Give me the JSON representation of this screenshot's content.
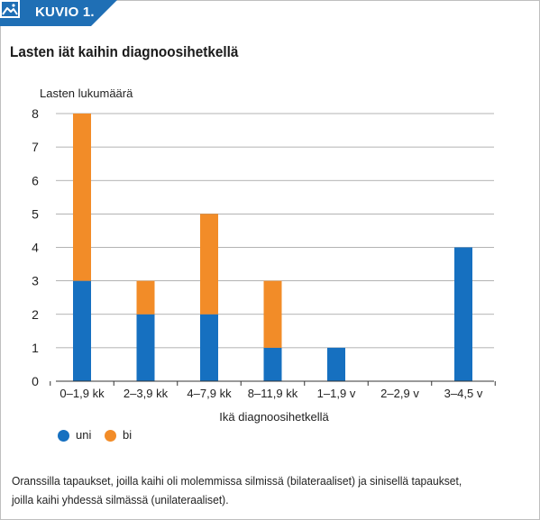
{
  "badge": {
    "label": "KUVIO 1.",
    "icon": "image-icon"
  },
  "figure_title": "Lasten iät kaihin diagnoosihetkellä",
  "caption": "Oranssilla tapaukset, joilla kaihi oli molemmissa silmissä (bilateraaliset) ja sinisellä tapaukset, joilla kaihi yhdessä silmässä (unilateraaliset).",
  "colors": {
    "badge": "#1f6fb5",
    "uni": "#1670c0",
    "bi": "#f28c28",
    "grid": "#9a9a9a"
  },
  "chart_data": {
    "type": "bar",
    "stacked": true,
    "ylabel": "Lasten lukumäärä",
    "xlabel": "Ikä diagnoosihetkellä",
    "ylim": [
      0,
      8
    ],
    "yticks": [
      "0",
      "1",
      "2",
      "3",
      "4",
      "5",
      "6",
      "7",
      "8"
    ],
    "categories": [
      "0–1,9 kk",
      "2–3,9 kk",
      "4–7,9 kk",
      "8–11,9 kk",
      "1–1,9 v",
      "2–2,9 v",
      "3–4,5 v"
    ],
    "series": [
      {
        "name": "uni",
        "values": [
          3,
          2,
          2,
          1,
          1,
          0,
          4
        ]
      },
      {
        "name": "bi",
        "values": [
          5,
          1,
          3,
          2,
          0,
          0,
          0
        ]
      }
    ],
    "grid": true,
    "legend": "bottom-left"
  }
}
